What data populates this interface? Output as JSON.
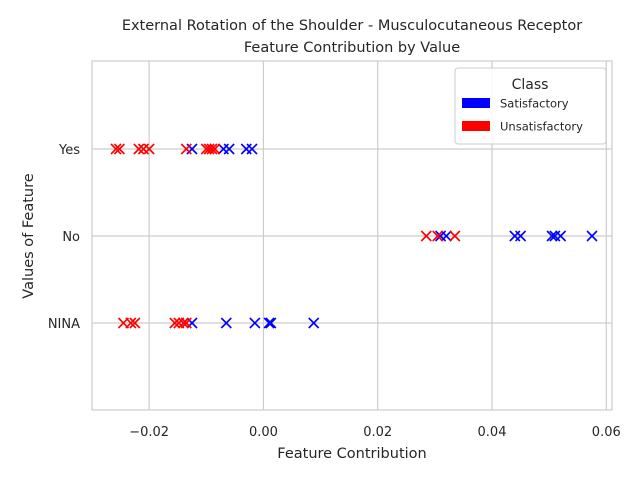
{
  "chart_data": {
    "type": "scatter",
    "title": "External Rotation of the Shoulder - Musculocutaneous Receptor",
    "subtitle": "Feature Contribution by Value",
    "xlabel": "Feature Contribution",
    "ylabel": "Values of Feature",
    "xlim": [
      -0.03,
      0.061
    ],
    "xticks": [
      -0.02,
      0.0,
      0.02,
      0.04,
      0.06
    ],
    "xtick_labels": [
      "−0.02",
      "0.00",
      "0.02",
      "0.04",
      "0.06"
    ],
    "categories": [
      "NINA",
      "No",
      "Yes"
    ],
    "grid": true,
    "marker": "x",
    "legend": {
      "title": "Class",
      "placement": "top-right",
      "entries": [
        {
          "label": "Satisfactory",
          "color": "#0000ff"
        },
        {
          "label": "Unsatisfactory",
          "color": "#ff0000"
        }
      ]
    },
    "series": [
      {
        "name": "Satisfactory",
        "color": "#0000ff",
        "points": [
          {
            "x": -0.0125,
            "y": "Yes"
          },
          {
            "x": -0.007,
            "y": "Yes"
          },
          {
            "x": -0.006,
            "y": "Yes"
          },
          {
            "x": -0.003,
            "y": "Yes"
          },
          {
            "x": -0.002,
            "y": "Yes"
          },
          {
            "x": 0.031,
            "y": "No"
          },
          {
            "x": 0.032,
            "y": "No"
          },
          {
            "x": 0.044,
            "y": "No"
          },
          {
            "x": 0.045,
            "y": "No"
          },
          {
            "x": 0.0505,
            "y": "No"
          },
          {
            "x": 0.051,
            "y": "No"
          },
          {
            "x": 0.052,
            "y": "No"
          },
          {
            "x": 0.0575,
            "y": "No"
          },
          {
            "x": -0.0125,
            "y": "NINA"
          },
          {
            "x": -0.0065,
            "y": "NINA"
          },
          {
            "x": -0.0015,
            "y": "NINA"
          },
          {
            "x": 0.001,
            "y": "NINA"
          },
          {
            "x": 0.0013,
            "y": "NINA"
          },
          {
            "x": 0.0088,
            "y": "NINA"
          }
        ]
      },
      {
        "name": "Unsatisfactory",
        "color": "#ff0000",
        "points": [
          {
            "x": -0.0258,
            "y": "Yes"
          },
          {
            "x": -0.0252,
            "y": "Yes"
          },
          {
            "x": -0.0218,
            "y": "Yes"
          },
          {
            "x": -0.021,
            "y": "Yes"
          },
          {
            "x": -0.02,
            "y": "Yes"
          },
          {
            "x": -0.0135,
            "y": "Yes"
          },
          {
            "x": -0.01,
            "y": "Yes"
          },
          {
            "x": -0.0095,
            "y": "Yes"
          },
          {
            "x": -0.009,
            "y": "Yes"
          },
          {
            "x": -0.0085,
            "y": "Yes"
          },
          {
            "x": 0.0285,
            "y": "No"
          },
          {
            "x": 0.0305,
            "y": "No"
          },
          {
            "x": 0.0335,
            "y": "No"
          },
          {
            "x": -0.0245,
            "y": "NINA"
          },
          {
            "x": -0.0232,
            "y": "NINA"
          },
          {
            "x": -0.0225,
            "y": "NINA"
          },
          {
            "x": -0.0155,
            "y": "NINA"
          },
          {
            "x": -0.0148,
            "y": "NINA"
          },
          {
            "x": -0.014,
            "y": "NINA"
          },
          {
            "x": -0.0135,
            "y": "NINA"
          }
        ]
      }
    ]
  }
}
